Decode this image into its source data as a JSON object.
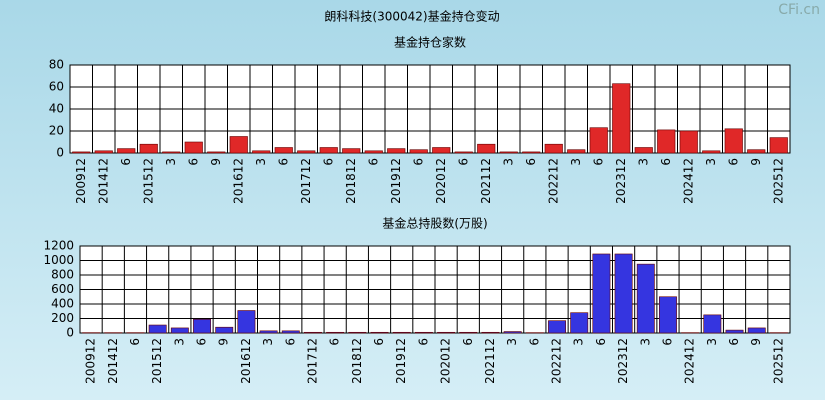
{
  "title": "朗科科技(300042)基金持仓变动",
  "watermark": "CFi.cn",
  "chart_data": [
    {
      "type": "bar",
      "title": "基金持仓家数",
      "categories": [
        "200912",
        "201412",
        "6",
        "201512",
        "3",
        "6",
        "9",
        "201612",
        "3",
        "6",
        "201712",
        "6",
        "201812",
        "6",
        "201912",
        "6",
        "202012",
        "6",
        "202112",
        "3",
        "6",
        "202212",
        "3",
        "6",
        "202312",
        "3",
        "6",
        "202412",
        "3",
        "6",
        "9",
        "202512"
      ],
      "values": [
        1,
        2,
        4,
        8,
        1,
        10,
        1,
        15,
        2,
        5,
        2,
        5,
        4,
        2,
        4,
        3,
        5,
        1,
        8,
        1,
        1,
        8,
        3,
        23,
        63,
        5,
        21,
        20,
        2,
        22,
        3,
        14
      ],
      "color": "#e02828",
      "ylim": [
        0,
        80
      ],
      "yticks": [
        0,
        20,
        40,
        60,
        80
      ],
      "grid": true
    },
    {
      "type": "bar",
      "title": "基金总持股数(万股)",
      "categories": [
        "200912",
        "201412",
        "6",
        "201512",
        "3",
        "6",
        "9",
        "201612",
        "3",
        "6",
        "201712",
        "6",
        "201812",
        "6",
        "201912",
        "6",
        "202012",
        "6",
        "202112",
        "3",
        "6",
        "202212",
        "3",
        "6",
        "202312",
        "3",
        "6",
        "202412",
        "3",
        "6",
        "9",
        "202512"
      ],
      "values": [
        5,
        5,
        5,
        110,
        70,
        190,
        80,
        310,
        30,
        30,
        10,
        10,
        10,
        10,
        10,
        10,
        10,
        10,
        10,
        20,
        5,
        170,
        280,
        1090,
        1090,
        950,
        500,
        5,
        250,
        40,
        70,
        5
      ],
      "color": "#3535e0",
      "ylim": [
        0,
        1200
      ],
      "yticks": [
        0,
        200,
        400,
        600,
        800,
        1000,
        1200
      ],
      "grid": true
    }
  ]
}
